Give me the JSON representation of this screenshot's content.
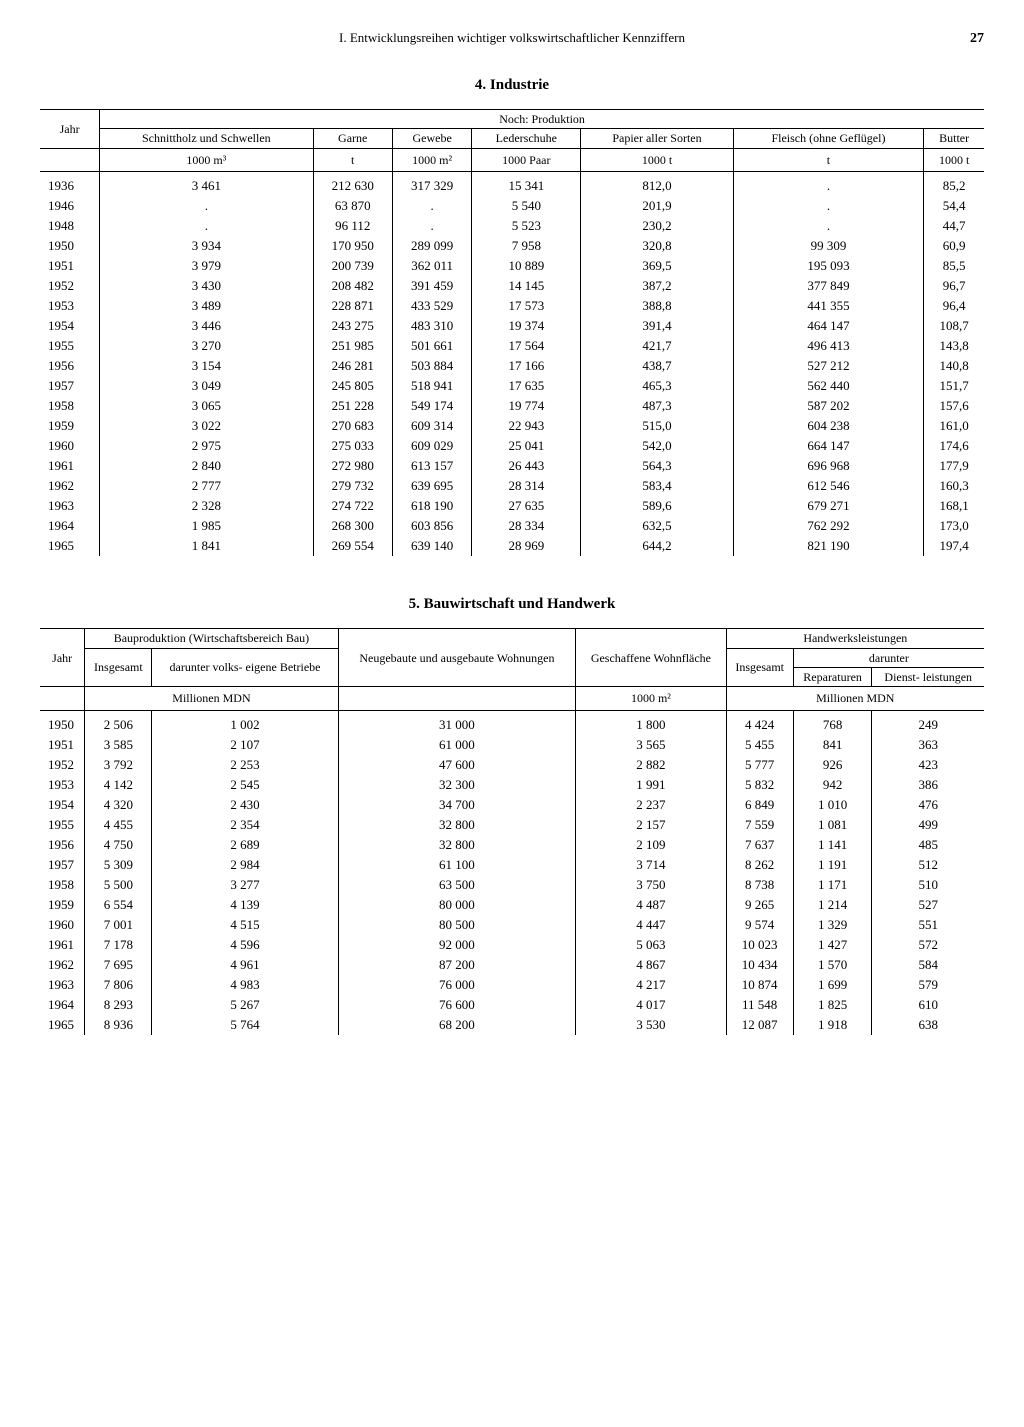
{
  "page": {
    "header": "I. Entwicklungsreihen wichtiger volkswirtschaftlicher Kennziffern",
    "number": "27"
  },
  "table1": {
    "title": "4. Industrie",
    "super_header": "Noch: Produktion",
    "col_year": "Jahr",
    "cols": [
      {
        "label": "Schnittholz und Schwellen",
        "unit": "1000 m³"
      },
      {
        "label": "Garne",
        "unit": "t"
      },
      {
        "label": "Gewebe",
        "unit": "1000 m²"
      },
      {
        "label": "Lederschuhe",
        "unit": "1000 Paar"
      },
      {
        "label": "Papier aller Sorten",
        "unit": "1000 t"
      },
      {
        "label": "Fleisch (ohne Geflügel)",
        "unit": "t"
      },
      {
        "label": "Butter",
        "unit": "1000 t"
      }
    ],
    "rows": [
      [
        "1936",
        "3 461",
        "212 630",
        "317 329",
        "15 341",
        "812,0",
        ".",
        "85,2"
      ],
      [
        "1946",
        ".",
        "63 870",
        ".",
        "5 540",
        "201,9",
        ".",
        "54,4"
      ],
      [
        "1948",
        ".",
        "96 112",
        ".",
        "5 523",
        "230,2",
        ".",
        "44,7"
      ],
      [
        "1950",
        "3 934",
        "170 950",
        "289 099",
        "7 958",
        "320,8",
        "99 309",
        "60,9"
      ],
      [
        "1951",
        "3 979",
        "200 739",
        "362 011",
        "10 889",
        "369,5",
        "195 093",
        "85,5"
      ],
      [
        "1952",
        "3 430",
        "208 482",
        "391 459",
        "14 145",
        "387,2",
        "377 849",
        "96,7"
      ],
      [
        "1953",
        "3 489",
        "228 871",
        "433 529",
        "17 573",
        "388,8",
        "441 355",
        "96,4"
      ],
      [
        "1954",
        "3 446",
        "243 275",
        "483 310",
        "19 374",
        "391,4",
        "464 147",
        "108,7"
      ],
      [
        "1955",
        "3 270",
        "251 985",
        "501 661",
        "17 564",
        "421,7",
        "496 413",
        "143,8"
      ],
      [
        "1956",
        "3 154",
        "246 281",
        "503 884",
        "17 166",
        "438,7",
        "527 212",
        "140,8"
      ],
      [
        "1957",
        "3 049",
        "245 805",
        "518 941",
        "17 635",
        "465,3",
        "562 440",
        "151,7"
      ],
      [
        "1958",
        "3 065",
        "251 228",
        "549 174",
        "19 774",
        "487,3",
        "587 202",
        "157,6"
      ],
      [
        "1959",
        "3 022",
        "270 683",
        "609 314",
        "22 943",
        "515,0",
        "604 238",
        "161,0"
      ],
      [
        "1960",
        "2 975",
        "275 033",
        "609 029",
        "25 041",
        "542,0",
        "664 147",
        "174,6"
      ],
      [
        "1961",
        "2 840",
        "272 980",
        "613 157",
        "26 443",
        "564,3",
        "696 968",
        "177,9"
      ],
      [
        "1962",
        "2 777",
        "279 732",
        "639 695",
        "28 314",
        "583,4",
        "612 546",
        "160,3"
      ],
      [
        "1963",
        "2 328",
        "274 722",
        "618 190",
        "27 635",
        "589,6",
        "679 271",
        "168,1"
      ],
      [
        "1964",
        "1 985",
        "268 300",
        "603 856",
        "28 334",
        "632,5",
        "762 292",
        "173,0"
      ],
      [
        "1965",
        "1 841",
        "269 554",
        "639 140",
        "28 969",
        "644,2",
        "821 190",
        "197,4"
      ]
    ]
  },
  "table2": {
    "title": "5. Bauwirtschaft und Handwerk",
    "col_year": "Jahr",
    "h_bauprod": "Bauproduktion (Wirtschaftsbereich Bau)",
    "h_bauprod1": "Insgesamt",
    "h_bauprod2": "darunter volks- eigene Betriebe",
    "h_neubau": "Neugebaute und ausgebaute Wohnungen",
    "h_wohn": "Geschaffene Wohnfläche",
    "h_handwerk": "Handwerksleistungen",
    "h_darunter": "darunter",
    "h_hand1": "Insgesamt",
    "h_hand2": "Reparaturen",
    "h_hand3": "Dienst- leistungen",
    "u_mdn": "Millionen MDN",
    "u_m2": "1000 m²",
    "rows": [
      [
        "1950",
        "2 506",
        "1 002",
        "31 000",
        "1 800",
        "4 424",
        "768",
        "249"
      ],
      [
        "1951",
        "3 585",
        "2 107",
        "61 000",
        "3 565",
        "5 455",
        "841",
        "363"
      ],
      [
        "1952",
        "3 792",
        "2 253",
        "47 600",
        "2 882",
        "5 777",
        "926",
        "423"
      ],
      [
        "1953",
        "4 142",
        "2 545",
        "32 300",
        "1 991",
        "5 832",
        "942",
        "386"
      ],
      [
        "1954",
        "4 320",
        "2 430",
        "34 700",
        "2 237",
        "6 849",
        "1 010",
        "476"
      ],
      [
        "1955",
        "4 455",
        "2 354",
        "32 800",
        "2 157",
        "7 559",
        "1 081",
        "499"
      ],
      [
        "1956",
        "4 750",
        "2 689",
        "32 800",
        "2 109",
        "7 637",
        "1 141",
        "485"
      ],
      [
        "1957",
        "5 309",
        "2 984",
        "61 100",
        "3 714",
        "8 262",
        "1 191",
        "512"
      ],
      [
        "1958",
        "5 500",
        "3 277",
        "63 500",
        "3 750",
        "8 738",
        "1 171",
        "510"
      ],
      [
        "1959",
        "6 554",
        "4 139",
        "80 000",
        "4 487",
        "9 265",
        "1 214",
        "527"
      ],
      [
        "1960",
        "7 001",
        "4 515",
        "80 500",
        "4 447",
        "9 574",
        "1 329",
        "551"
      ],
      [
        "1961",
        "7 178",
        "4 596",
        "92 000",
        "5 063",
        "10 023",
        "1 427",
        "572"
      ],
      [
        "1962",
        "7 695",
        "4 961",
        "87 200",
        "4 867",
        "10 434",
        "1 570",
        "584"
      ],
      [
        "1963",
        "7 806",
        "4 983",
        "76 000",
        "4 217",
        "10 874",
        "1 699",
        "579"
      ],
      [
        "1964",
        "8 293",
        "5 267",
        "76 600",
        "4 017",
        "11 548",
        "1 825",
        "610"
      ],
      [
        "1965",
        "8 936",
        "5 764",
        "68 200",
        "3 530",
        "12 087",
        "1 918",
        "638"
      ]
    ]
  }
}
